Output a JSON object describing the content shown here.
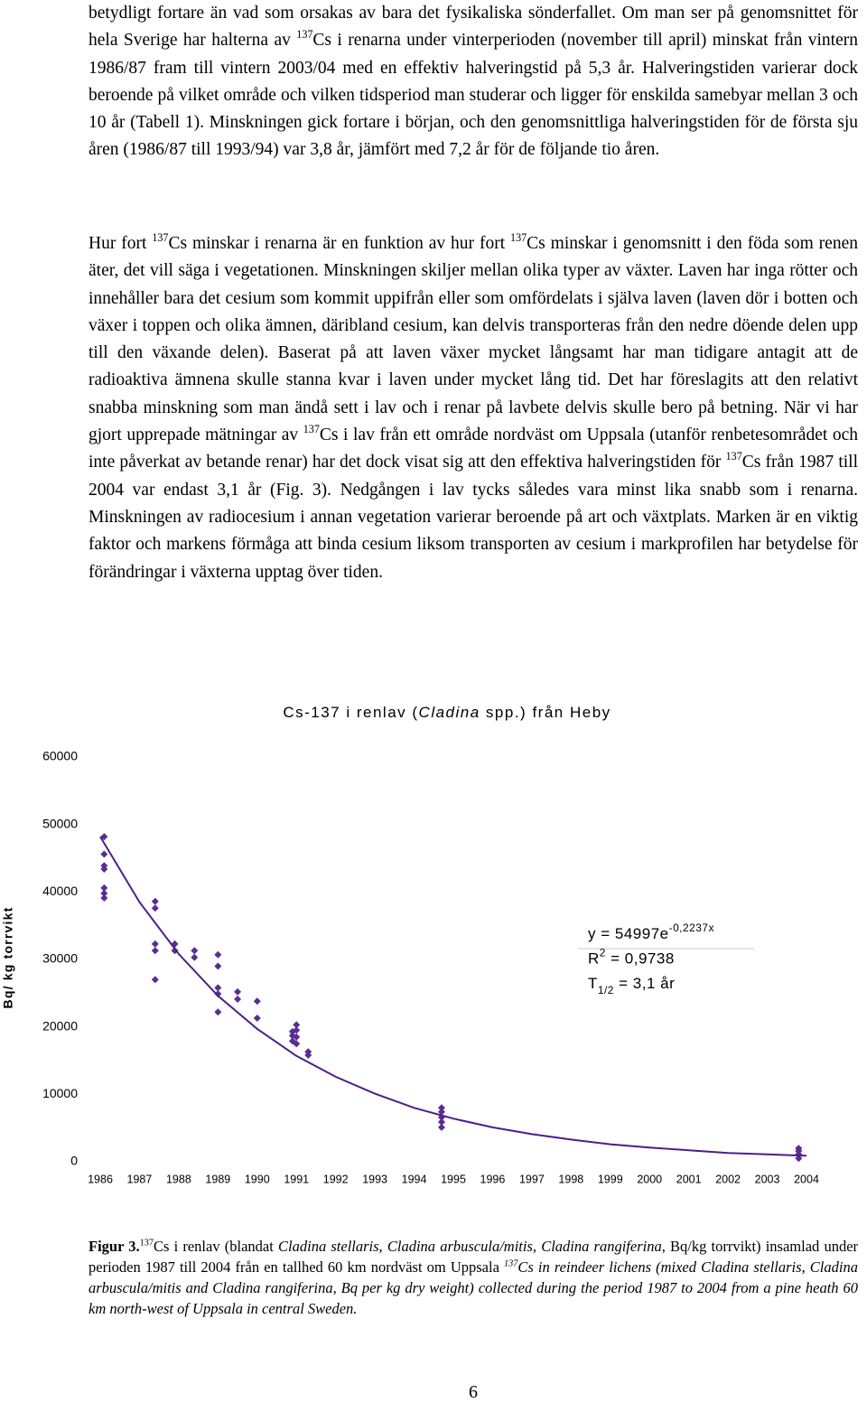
{
  "paragraphs": [
    [
      {
        "text": "betydligt fortare än vad som orsakas av bara det fysikaliska sönderfallet. Om man ser på genomsnittet för hela Sverige har halterna av "
      },
      {
        "sup": "137"
      },
      {
        "text": "Cs i renarna under vinterperioden (november till april) minskat från vintern 1986/87 fram till vintern 2003/04 med en effektiv halveringstid på 5,3 år. Halveringstiden varierar dock beroende på vilket område och vilken tidsperiod man studerar och ligger för enskilda samebyar mellan 3 och 10 år (Tabell 1). Minskningen gick fortare i början, och den genomsnittliga halveringstiden för de första sju åren (1986/87 till 1993/94) var 3,8 år, jämfört med 7,2 år för de följande tio åren."
      }
    ],
    [
      {
        "text": "Hur fort "
      },
      {
        "sup": "137"
      },
      {
        "text": "Cs minskar i renarna är en funktion av hur fort "
      },
      {
        "sup": "137"
      },
      {
        "text": "Cs minskar i genomsnitt i den föda som renen äter, det vill säga i vegetationen. Minskningen skiljer mellan olika typer av växter. Laven har inga rötter och innehåller bara det cesium som kommit uppifrån eller som omfördelats i själva laven (laven dör i botten och växer i toppen och olika ämnen, däribland cesium, kan delvis transporteras från den nedre döende delen upp till den växande delen). Baserat på att laven växer mycket långsamt har man tidigare antagit att de radioaktiva ämnena skulle stanna kvar i laven under mycket lång tid. Det har föreslagits att den relativt snabba minskning som man ändå sett i lav och i renar på lavbete delvis skulle bero på betning. När vi har gjort upprepade mätningar av "
      },
      {
        "sup": "137"
      },
      {
        "text": "Cs i lav från ett område nordväst om Uppsala (utanför renbetesområdet och inte påverkat av betande renar) har det dock visat sig att den effektiva halveringstiden för "
      },
      {
        "sup": "137"
      },
      {
        "text": "Cs från 1987 till 2004 var endast 3,1 år (Fig. 3). Nedgången i lav tycks således vara minst lika snabb som i renarna. Minskningen av radiocesium i annan vegetation varierar beroende på art och växtplats. Marken är en viktig faktor och markens förmåga att binda cesium liksom transporten av cesium i markprofilen har betydelse för förändringar i växterna upptag över tiden."
      }
    ]
  ],
  "chart_data": {
    "type": "scatter",
    "title": [
      {
        "text": "Cs-137 i renlav ("
      },
      {
        "italic": "Cladina"
      },
      {
        "text": " spp.) från Heby"
      }
    ],
    "ylabel": "Bq/ kg torrvikt",
    "annotation": [
      [
        {
          "text": "y = 54997e"
        },
        {
          "sup": "-0,2237x"
        }
      ],
      [
        {
          "text": "R"
        },
        {
          "sup": "2"
        },
        {
          "text": " = 0,9738"
        }
      ],
      [
        {
          "text": "T"
        },
        {
          "sub": "1/2"
        },
        {
          "text": " = 3,1 år"
        }
      ]
    ],
    "xlim": [
      1986,
      2004
    ],
    "xticks": [
      1986,
      1987,
      1988,
      1989,
      1990,
      1991,
      1992,
      1993,
      1994,
      1995,
      1996,
      1997,
      1998,
      1999,
      2000,
      2001,
      2002,
      2003,
      2004
    ],
    "ylim": [
      0,
      60000
    ],
    "yticks": [
      0,
      10000,
      20000,
      30000,
      40000,
      50000,
      60000
    ],
    "series": [
      {
        "marker": "diamond",
        "color": "#5a2d91",
        "x": [
          1986.1,
          1986.1,
          1986.1,
          1986.1,
          1986.1,
          1986.1,
          1986.1,
          1987.4,
          1987.4,
          1987.4,
          1987.4,
          1987.4,
          1987.9,
          1987.9,
          1988.4,
          1988.4,
          1989.0,
          1989.0,
          1989.0,
          1989.0,
          1989.0,
          1989.5,
          1989.5,
          1990.0,
          1990.0,
          1990.9,
          1990.9,
          1990.9,
          1991.0,
          1991.0,
          1991.0,
          1991.0,
          1991.3,
          1991.3,
          1994.7,
          1994.7,
          1994.7,
          1994.7,
          1994.7,
          2003.8,
          2003.8,
          2003.8,
          2003.8
        ],
        "values": [
          48200,
          45600,
          43900,
          43400,
          40600,
          39800,
          39100,
          38600,
          37600,
          32300,
          31300,
          27000,
          32300,
          31300,
          31300,
          30300,
          30700,
          29000,
          25800,
          24900,
          22200,
          25200,
          24100,
          23800,
          21300,
          19300,
          18700,
          17900,
          20300,
          19500,
          18500,
          17500,
          16300,
          15800,
          8000,
          7400,
          6600,
          5900,
          5100,
          2000,
          1600,
          1100,
          500
        ]
      },
      {
        "line": true,
        "color": "#4b1f8a",
        "x": [
          1986,
          1987,
          1988,
          1989,
          1990,
          1991,
          1992,
          1993,
          1994,
          1995,
          1996,
          1997,
          1998,
          1999,
          2000,
          2001,
          2002,
          2003,
          2004
        ],
        "values": [
          48200,
          38500,
          30800,
          24600,
          19700,
          15700,
          12600,
          10100,
          8000,
          6400,
          5100,
          4100,
          3300,
          2600,
          2100,
          1700,
          1300,
          1100,
          900
        ]
      }
    ]
  },
  "caption": [
    {
      "bold": "Figur 3."
    },
    {
      "sup": "137"
    },
    {
      "text": "Cs i renlav (blandat "
    },
    {
      "italic": "Cladina stellaris"
    },
    {
      "text": ", "
    },
    {
      "italic": "Cladina arbuscula/mitis"
    },
    {
      "text": ", "
    },
    {
      "italic": "Cladina rangiferina"
    },
    {
      "text": ", Bq/kg torrvikt) insamlad under perioden 1987 till 2004 från en tallhed 60 km nordväst om Uppsala "
    },
    {
      "sup": "137",
      "style": "italic"
    },
    {
      "italic": "Cs in reindeer lichens (mixed Cladina stellaris, Cladina arbuscula/mitis and Cladina rangiferina, Bq per kg dry weight) collected during the period 1987 to 2004 from a pine heath 60 km north-west of Uppsala in central Sweden."
    }
  ],
  "page_number": "6"
}
